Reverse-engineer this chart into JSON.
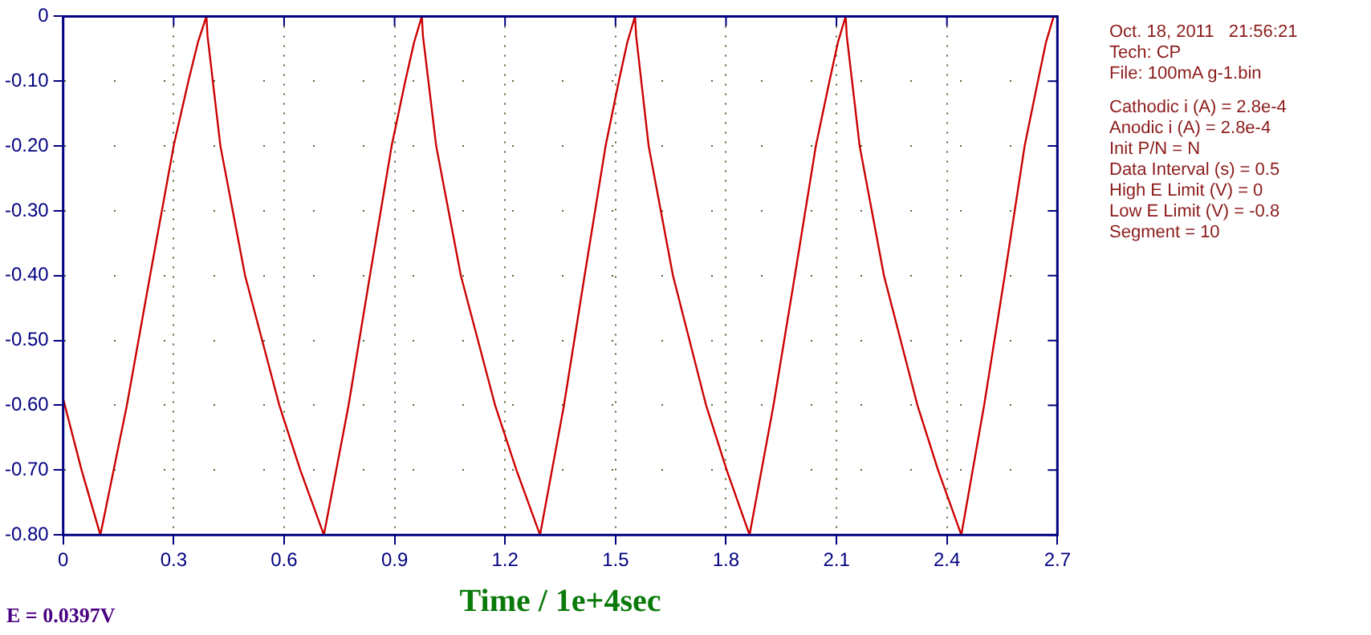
{
  "chart_data": {
    "type": "line",
    "xlabel": "Time / 1e+4sec",
    "x": [
      0,
      0.05,
      0.101,
      0.173,
      0.236,
      0.3,
      0.34,
      0.366,
      0.389,
      0.392,
      0.427,
      0.494,
      0.587,
      0.644,
      0.708,
      0.775,
      0.833,
      0.892,
      0.929,
      0.953,
      0.974,
      0.977,
      1.013,
      1.08,
      1.173,
      1.231,
      1.295,
      1.36,
      1.416,
      1.473,
      1.509,
      1.532,
      1.553,
      1.556,
      1.59,
      1.656,
      1.746,
      1.802,
      1.864,
      1.929,
      1.987,
      2.044,
      2.081,
      2.104,
      2.125,
      2.128,
      2.163,
      2.229,
      2.32,
      2.376,
      2.439,
      2.501,
      2.557,
      2.611,
      2.647,
      2.669,
      2.69
    ],
    "series": [
      {
        "color": "#cc0000",
        "values": [
          -0.59,
          -0.7,
          -0.8,
          -0.6,
          -0.4,
          -0.2,
          -0.1,
          -0.04,
          0,
          -0.03,
          -0.2,
          -0.4,
          -0.6,
          -0.7,
          -0.8,
          -0.6,
          -0.4,
          -0.2,
          -0.1,
          -0.04,
          0,
          -0.03,
          -0.2,
          -0.4,
          -0.6,
          -0.7,
          -0.8,
          -0.6,
          -0.4,
          -0.2,
          -0.1,
          -0.04,
          0,
          -0.03,
          -0.2,
          -0.4,
          -0.6,
          -0.7,
          -0.8,
          -0.6,
          -0.4,
          -0.2,
          -0.1,
          -0.04,
          0,
          -0.03,
          -0.2,
          -0.4,
          -0.6,
          -0.7,
          -0.8,
          -0.6,
          -0.4,
          -0.2,
          -0.1,
          -0.04,
          0
        ]
      }
    ],
    "xlim": [
      0,
      2.7
    ],
    "xticks": [
      0,
      0.3,
      0.6,
      0.9,
      1.2,
      1.5,
      1.8,
      2.1,
      2.4,
      2.7
    ],
    "ylim": [
      -0.8,
      0
    ],
    "yticks": [
      {
        "value": -0.8,
        "label": "-0.80"
      },
      {
        "value": -0.7,
        "label": "-0.70"
      },
      {
        "value": -0.6,
        "label": "-0.60"
      },
      {
        "value": -0.5,
        "label": "-0.50"
      },
      {
        "value": -0.4,
        "label": "-0.40"
      },
      {
        "value": -0.3,
        "label": "-0.30"
      },
      {
        "value": -0.2,
        "label": "-0.20"
      },
      {
        "value": -0.1,
        "label": "-0.10"
      },
      0
    ],
    "grid": true,
    "line_style": "solid",
    "marker": "none",
    "legend": false,
    "annotations": [
      "Oct. 18, 2011   21:56:21",
      "Tech: CP",
      "File: 100mA g-1.bin",
      "Cathodic i (A) = 2.8e-4",
      "Anodic i (A) = 2.8e-4",
      "Init P/N = N",
      "Data Interval (s) = 0.5",
      "High E Limit (V) = 0",
      "Low E Limit (V) = -0.8",
      "Segment = 10",
      "E = 0.0397V"
    ]
  }
}
